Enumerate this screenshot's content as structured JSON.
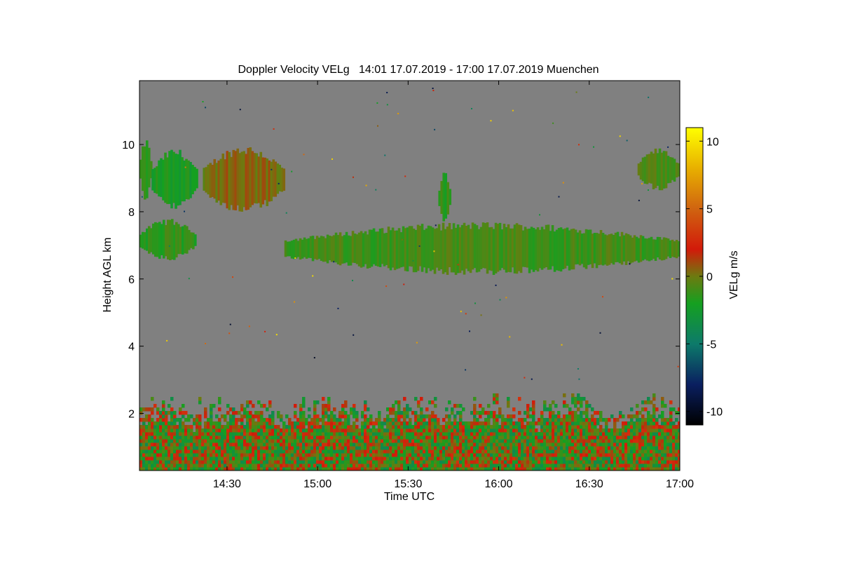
{
  "chart_data": {
    "type": "heatmap",
    "title": "Doppler Velocity VELg   14:01 17.07.2019 - 17:00 17.07.2019 Muenchen",
    "xlabel": "Time UTC",
    "ylabel": "Height AGL km",
    "xlim_minutes_utc": [
      841,
      1020
    ],
    "ylim_km": [
      0.3,
      11.9
    ],
    "x_ticks": [
      {
        "label": "14:30",
        "minutes": 870
      },
      {
        "label": "15:00",
        "minutes": 900
      },
      {
        "label": "15:30",
        "minutes": 930
      },
      {
        "label": "16:00",
        "minutes": 960
      },
      {
        "label": "16:30",
        "minutes": 990
      },
      {
        "label": "17:00",
        "minutes": 1020
      }
    ],
    "y_ticks": [
      {
        "label": "2",
        "km": 2
      },
      {
        "label": "4",
        "km": 4
      },
      {
        "label": "6",
        "km": 6
      },
      {
        "label": "8",
        "km": 8
      },
      {
        "label": "10",
        "km": 10
      }
    ],
    "colorbar": {
      "label": "VELg m/s",
      "range": [
        -11,
        11
      ],
      "ticks": [
        {
          "label": "10",
          "value": 10
        },
        {
          "label": "5",
          "value": 5
        },
        {
          "label": "0",
          "value": 0
        },
        {
          "label": "-5",
          "value": -5
        },
        {
          "label": "-10",
          "value": -10
        }
      ],
      "colors": [
        {
          "value": -11,
          "color": "#000000"
        },
        {
          "value": -8,
          "color": "#0a1f60"
        },
        {
          "value": -5,
          "color": "#0d7a6a"
        },
        {
          "value": -2,
          "color": "#15a020"
        },
        {
          "value": 0,
          "color": "#6d7a10"
        },
        {
          "value": 2,
          "color": "#d21a0a"
        },
        {
          "value": 5,
          "color": "#d06410"
        },
        {
          "value": 8,
          "color": "#e8b000"
        },
        {
          "value": 11,
          "color": "#ffff00"
        }
      ]
    },
    "background_color": "#808080",
    "cloud_regions": [
      {
        "name": "cirrus-left-edge",
        "t": [
          841,
          845
        ],
        "z": [
          8.3,
          10.2
        ],
        "velocity": -1.5
      },
      {
        "name": "cirrus-green-1",
        "t": [
          845,
          860
        ],
        "z": [
          8.0,
          9.9
        ],
        "velocity": -2
      },
      {
        "name": "cirrus-olive",
        "t": [
          862,
          889
        ],
        "z": [
          7.9,
          10.0
        ],
        "velocity": 0.3
      },
      {
        "name": "cirrus-small",
        "t": [
          940,
          944
        ],
        "z": [
          7.6,
          9.2
        ],
        "velocity": -1.5
      },
      {
        "name": "cirrus-right",
        "t": [
          1006,
          1020
        ],
        "z": [
          8.6,
          9.9
        ],
        "velocity": -0.8
      },
      {
        "name": "midlevel-left",
        "t": [
          841,
          860
        ],
        "z": [
          6.5,
          7.8
        ],
        "velocity": -1.5
      },
      {
        "name": "midlevel-band",
        "t": [
          889,
          1020
        ],
        "z": [
          6.1,
          7.7
        ],
        "velocity": -1
      }
    ],
    "boundary_layer": {
      "t": [
        841,
        1020
      ],
      "z": [
        0.3,
        2.8
      ],
      "velocity_range": [
        -4,
        3
      ]
    }
  }
}
